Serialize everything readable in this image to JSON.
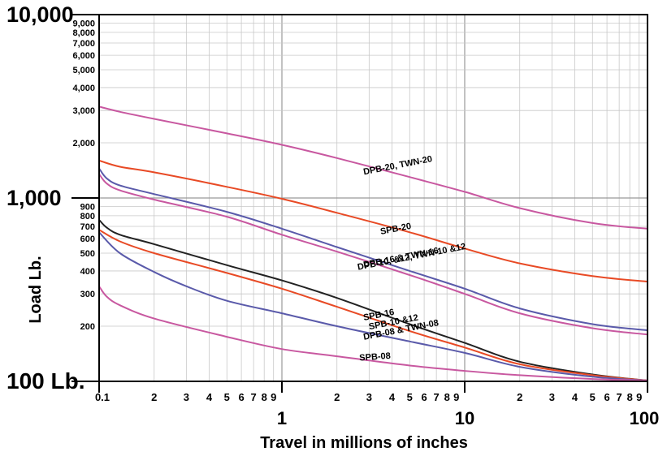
{
  "chart_data": {
    "type": "line",
    "x_scale": "log",
    "y_scale": "log",
    "xlim": [
      0.1,
      100
    ],
    "ylim": [
      100,
      10000
    ],
    "grid": true,
    "xlabel": "Travel in millions of inches",
    "ylabel": "Load Lb.",
    "x_major_ticks": [
      {
        "value": 0.1,
        "label": "0.1"
      },
      {
        "value": 1,
        "label": "1"
      },
      {
        "value": 10,
        "label": "10"
      },
      {
        "value": 100,
        "label": "100"
      }
    ],
    "x_minor_labels": [
      "2",
      "3",
      "4",
      "5",
      "6",
      "7",
      "8",
      "9"
    ],
    "y_major_ticks": [
      {
        "value": 100,
        "label": "100 Lb."
      },
      {
        "value": 1000,
        "label": "1,000"
      },
      {
        "value": 10000,
        "label": "10,000"
      }
    ],
    "y_minor_ticks_low": [
      {
        "value": 200,
        "label": "200"
      },
      {
        "value": 300,
        "label": "300"
      },
      {
        "value": 400,
        "label": "400"
      },
      {
        "value": 500,
        "label": "500"
      },
      {
        "value": 600,
        "label": "600"
      },
      {
        "value": 700,
        "label": "700"
      },
      {
        "value": 800,
        "label": "800"
      },
      {
        "value": 900,
        "label": "900"
      }
    ],
    "y_minor_ticks_high": [
      {
        "value": 2000,
        "label": "2,000"
      },
      {
        "value": 3000,
        "label": "3,000"
      },
      {
        "value": 4000,
        "label": "4,000"
      },
      {
        "value": 5000,
        "label": "5,000"
      },
      {
        "value": 6000,
        "label": "6,000"
      },
      {
        "value": 7000,
        "label": "7,000"
      },
      {
        "value": 8000,
        "label": "8,000"
      },
      {
        "value": 9000,
        "label": "9,000"
      }
    ],
    "series": [
      {
        "name": "DPB-20, TWN-20",
        "color": "#c858a0",
        "x": [
          0.1,
          0.13,
          0.2,
          0.5,
          1,
          2,
          5,
          10,
          20,
          50,
          100
        ],
        "y": [
          3150,
          2950,
          2700,
          2250,
          1950,
          1650,
          1300,
          1080,
          880,
          730,
          680
        ]
      },
      {
        "name": "SPB-20",
        "color": "#e84a25",
        "x": [
          0.1,
          0.13,
          0.2,
          0.5,
          1,
          2,
          5,
          10,
          20,
          50,
          100
        ],
        "y": [
          1600,
          1480,
          1380,
          1150,
          990,
          830,
          650,
          530,
          440,
          375,
          350
        ]
      },
      {
        "name": "DPB-16 & TWN-16",
        "color": "#5a5aaa",
        "x": [
          0.1,
          0.11,
          0.13,
          0.2,
          0.5,
          1,
          2,
          5,
          10,
          20,
          50,
          100
        ],
        "y": [
          1450,
          1280,
          1170,
          1050,
          840,
          680,
          540,
          400,
          320,
          250,
          205,
          190
        ]
      },
      {
        "name": "DPB-10, &12, TWN-10 &12",
        "color": "#c858a0",
        "x": [
          0.1,
          0.11,
          0.13,
          0.2,
          0.5,
          1,
          2,
          5,
          10,
          20,
          50,
          100
        ],
        "y": [
          1350,
          1200,
          1100,
          980,
          790,
          630,
          510,
          380,
          300,
          235,
          195,
          180
        ]
      },
      {
        "name": "SPB-16",
        "color": "#222222",
        "x": [
          0.1,
          0.11,
          0.13,
          0.2,
          0.5,
          1,
          2,
          5,
          10,
          20,
          50,
          100
        ],
        "y": [
          760,
          690,
          630,
          560,
          430,
          355,
          285,
          205,
          162,
          128,
          109,
          101
        ]
      },
      {
        "name": "SPB-10 &12",
        "color": "#e84a25",
        "x": [
          0.1,
          0.13,
          0.2,
          0.5,
          1,
          2,
          5,
          10,
          20,
          50,
          100
        ],
        "y": [
          670,
          580,
          500,
          390,
          320,
          255,
          188,
          153,
          124,
          108,
          101
        ]
      },
      {
        "name": "DPB-08 & TWN-08",
        "color": "#5a5aaa",
        "x": [
          0.1,
          0.13,
          0.2,
          0.3,
          0.5,
          1,
          2,
          5,
          10,
          20,
          50,
          100
        ],
        "y": [
          650,
          500,
          395,
          330,
          275,
          235,
          200,
          165,
          143,
          120,
          106,
          101
        ]
      },
      {
        "name": "SPB-08",
        "color": "#c858a0",
        "x": [
          0.1,
          0.11,
          0.13,
          0.2,
          0.5,
          1,
          2,
          5,
          10,
          20,
          50,
          100
        ],
        "y": [
          330,
          290,
          260,
          220,
          175,
          150,
          137,
          122,
          114,
          108,
          103,
          101
        ]
      }
    ]
  }
}
